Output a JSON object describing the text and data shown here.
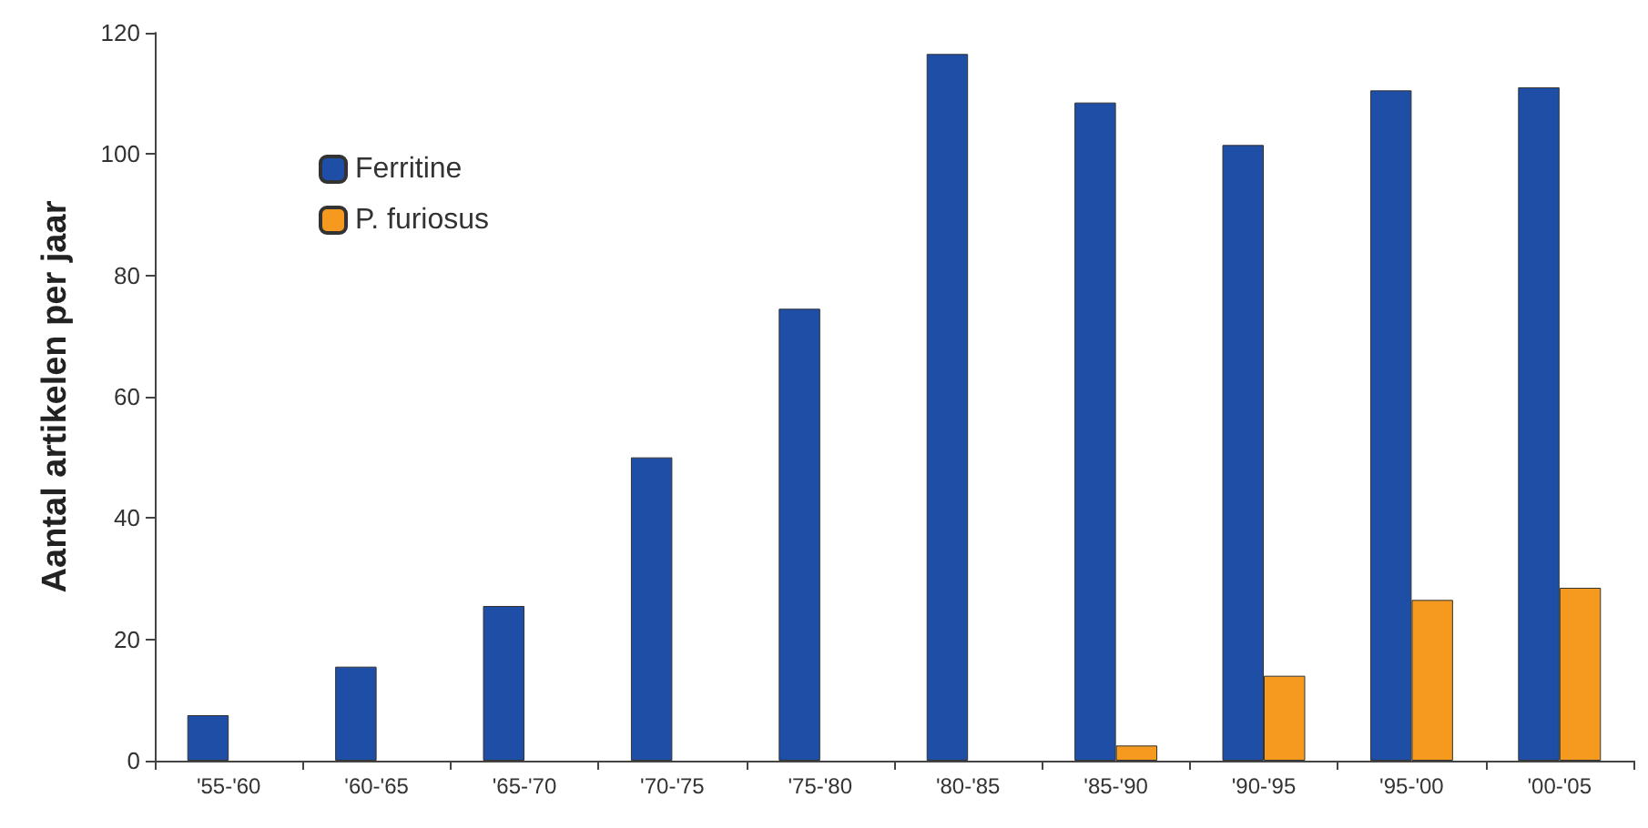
{
  "chart_data": {
    "type": "bar",
    "ylabel": "Aantal artikelen per jaar",
    "categories": [
      "'55-'60",
      "'60-'65",
      "'65-'70",
      "'70-'75",
      "'75-'80",
      "'80-'85",
      "'85-'90",
      "'90-'95",
      "'95-'00",
      "'00-'05"
    ],
    "series": [
      {
        "name": "Ferritine",
        "color": "#1f4ea6",
        "values": [
          7.5,
          15.5,
          25.5,
          50,
          74.5,
          116.5,
          108.5,
          101.5,
          110.5,
          111
        ]
      },
      {
        "name": "P. furiosus",
        "color": "#f59a1e",
        "values": [
          null,
          null,
          null,
          null,
          null,
          null,
          2.5,
          14,
          26.5,
          28.5
        ]
      }
    ],
    "ylim": [
      0,
      120
    ],
    "yticks": [
      0,
      20,
      40,
      60,
      80,
      100,
      120
    ],
    "grid": false,
    "legend": "top left"
  }
}
